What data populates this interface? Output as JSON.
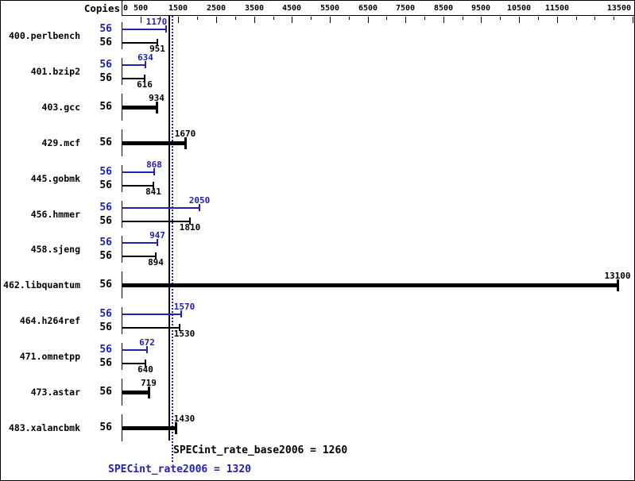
{
  "colors": {
    "base": "#000000",
    "peak": "#2222aa",
    "peak_line": "#2222bb",
    "background": "#ffffff"
  },
  "chart_data": {
    "type": "bar",
    "orientation": "horizontal",
    "copies_label": "Copies",
    "x_axis": {
      "min": 0,
      "max": 13500,
      "tick_step": 500,
      "labeled_ticks": [
        0,
        500,
        1500,
        2500,
        3500,
        4500,
        5500,
        6500,
        7500,
        8500,
        9500,
        10500,
        11500,
        13500
      ]
    },
    "benchmarks": [
      {
        "name": "400.perlbench",
        "copies": 56,
        "peak": 1170,
        "base": 951,
        "peak_label_dx": -12
      },
      {
        "name": "401.bzip2",
        "copies": 56,
        "peak": 634,
        "base": 616
      },
      {
        "name": "403.gcc",
        "copies": 56,
        "base": 934
      },
      {
        "name": "429.mcf",
        "copies": 56,
        "base": 1670
      },
      {
        "name": "445.gobmk",
        "copies": 56,
        "peak": 868,
        "base": 841
      },
      {
        "name": "456.hmmer",
        "copies": 56,
        "peak": 2050,
        "base": 1810
      },
      {
        "name": "458.sjeng",
        "copies": 56,
        "peak": 947,
        "base": 894
      },
      {
        "name": "462.libquantum",
        "copies": 56,
        "base": 13100
      },
      {
        "name": "464.h264ref",
        "copies": 56,
        "peak": 1570,
        "base": 1530,
        "peak_label_dx": 4,
        "base_label_dx": 6
      },
      {
        "name": "471.omnetpp",
        "copies": 56,
        "peak": 672,
        "base": 640
      },
      {
        "name": "473.astar",
        "copies": 56,
        "base": 719
      },
      {
        "name": "483.xalancbmk",
        "copies": 56,
        "base": 1430,
        "base_label_dx": 11
      }
    ],
    "reference_lines": [
      {
        "name": "base",
        "value": 1260,
        "style": "solid"
      },
      {
        "name": "peak",
        "value": 1320,
        "style": "dotted"
      }
    ],
    "footer": {
      "base_label": "SPECint_rate_base2006 = 1260",
      "peak_label": "SPECint_rate2006 = 1320"
    }
  }
}
